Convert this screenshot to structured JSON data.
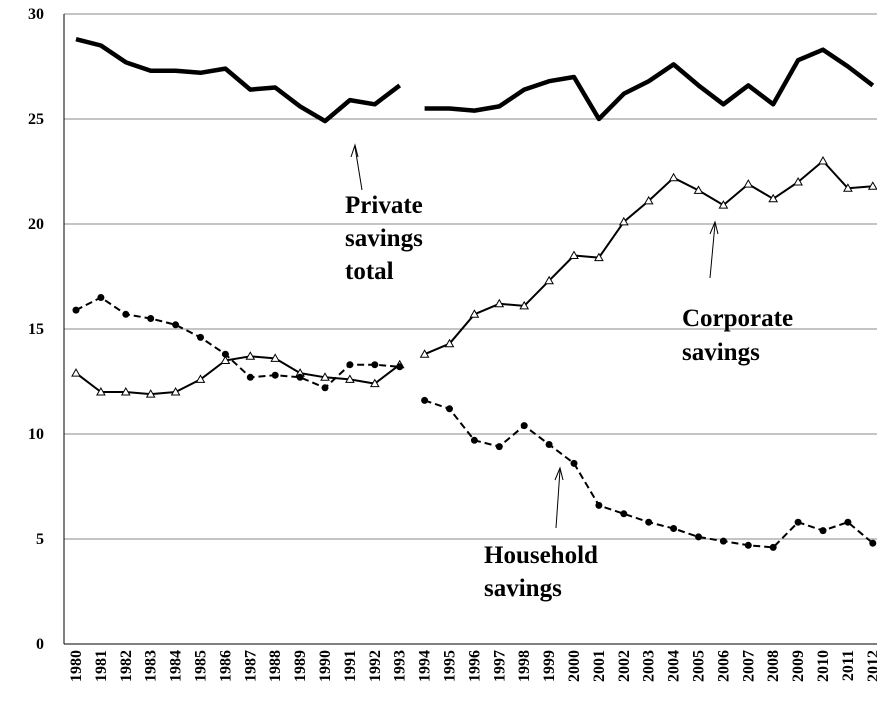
{
  "chart_data": {
    "type": "line",
    "categories": [
      "1980",
      "1981",
      "1982",
      "1983",
      "1984",
      "1985",
      "1986",
      "1987",
      "1988",
      "1989",
      "1990",
      "1991",
      "1992",
      "1993",
      "1994",
      "1995",
      "1996",
      "1997",
      "1998",
      "1999",
      "2000",
      "2001",
      "2002",
      "2003",
      "2004",
      "2005",
      "2006",
      "2007",
      "2008",
      "2009",
      "2010",
      "2011",
      "2012"
    ],
    "line_break_after": 13,
    "ylim": [
      0,
      30
    ],
    "yticks": [
      0,
      5,
      10,
      15,
      20,
      25,
      30
    ],
    "grid": true,
    "series": [
      {
        "color": "#000000",
        "width": 4.5,
        "dash": false,
        "marker": "none",
        "values": [
          28.8,
          28.5,
          27.7,
          27.3,
          27.3,
          27.2,
          27.4,
          26.4,
          26.5,
          25.6,
          24.9,
          25.9,
          25.7,
          26.6,
          25.5,
          25.5,
          25.4,
          25.6,
          26.4,
          26.8,
          27.0,
          25.0,
          26.2,
          26.8,
          27.6,
          26.6,
          25.7,
          26.6,
          25.7,
          27.8,
          28.3,
          27.5,
          26.6
        ]
      },
      {
        "color": "#000000",
        "width": 2,
        "dash": false,
        "marker": "triangle",
        "values": [
          12.9,
          12.0,
          12.0,
          11.9,
          12.0,
          12.6,
          13.5,
          13.7,
          13.6,
          12.9,
          12.7,
          12.6,
          12.4,
          13.3,
          13.8,
          14.3,
          15.7,
          16.2,
          16.1,
          17.3,
          18.5,
          18.4,
          20.1,
          21.1,
          22.2,
          21.6,
          20.9,
          21.9,
          21.2,
          22.0,
          23.0,
          21.7,
          21.8
        ]
      },
      {
        "color": "#000000",
        "width": 2,
        "dash": true,
        "marker": "circle",
        "values": [
          15.9,
          16.5,
          15.7,
          15.5,
          15.2,
          14.6,
          13.8,
          12.7,
          12.8,
          12.7,
          12.2,
          13.3,
          13.3,
          13.2,
          11.6,
          11.2,
          9.7,
          9.4,
          10.4,
          9.5,
          8.6,
          6.6,
          6.2,
          5.8,
          5.5,
          5.1,
          4.9,
          4.7,
          4.6,
          5.8,
          5.4,
          5.8,
          4.8
        ]
      }
    ],
    "annotations": [
      {
        "text": [
          "Private",
          "savings",
          "total"
        ]
      },
      {
        "text": [
          "Corporate",
          "savings"
        ]
      },
      {
        "text": [
          "Household",
          "savings"
        ]
      }
    ]
  }
}
